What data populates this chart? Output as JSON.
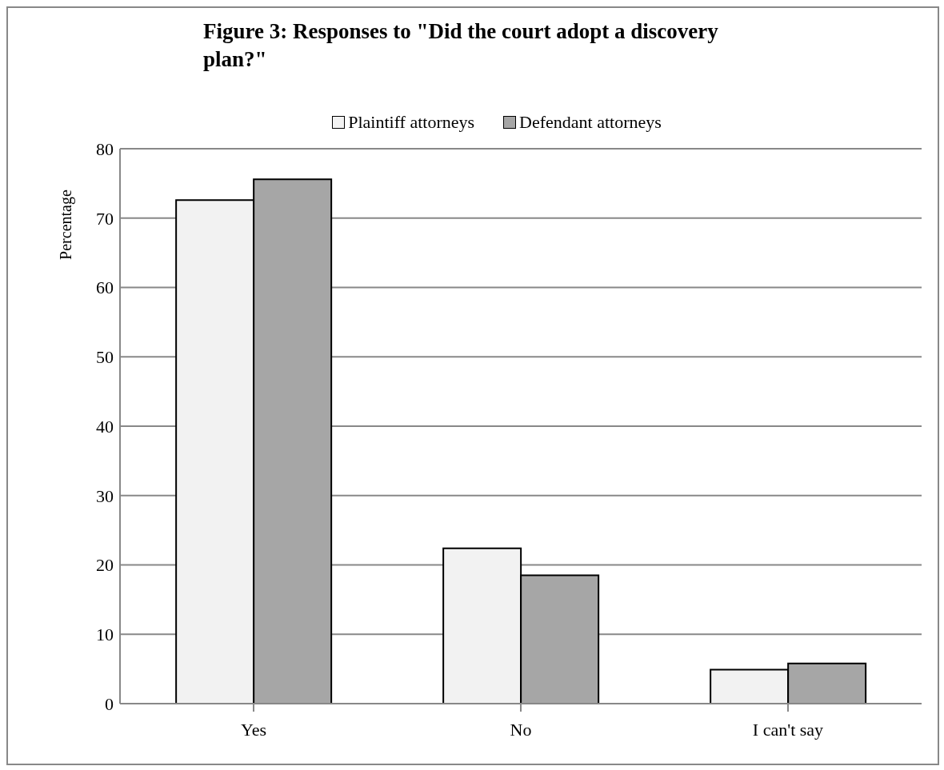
{
  "chart_data": {
    "type": "bar",
    "title": "Figure 3: Responses to \"Did the court adopt a discovery plan?\"",
    "ylabel": "Percentage",
    "categories": [
      "Yes",
      "No",
      "I can't say"
    ],
    "series": [
      {
        "name": "Plaintiff attorneys",
        "color": "#f2f2f2",
        "values": [
          72.6,
          22.4,
          4.9
        ]
      },
      {
        "name": "Defendant attorneys",
        "color": "#a6a6a6",
        "values": [
          75.6,
          18.5,
          5.8
        ]
      }
    ],
    "ylim": [
      0,
      80
    ],
    "yticks": [
      0,
      10,
      20,
      30,
      40,
      50,
      60,
      70,
      80
    ],
    "grid": "y",
    "legend": "top"
  }
}
